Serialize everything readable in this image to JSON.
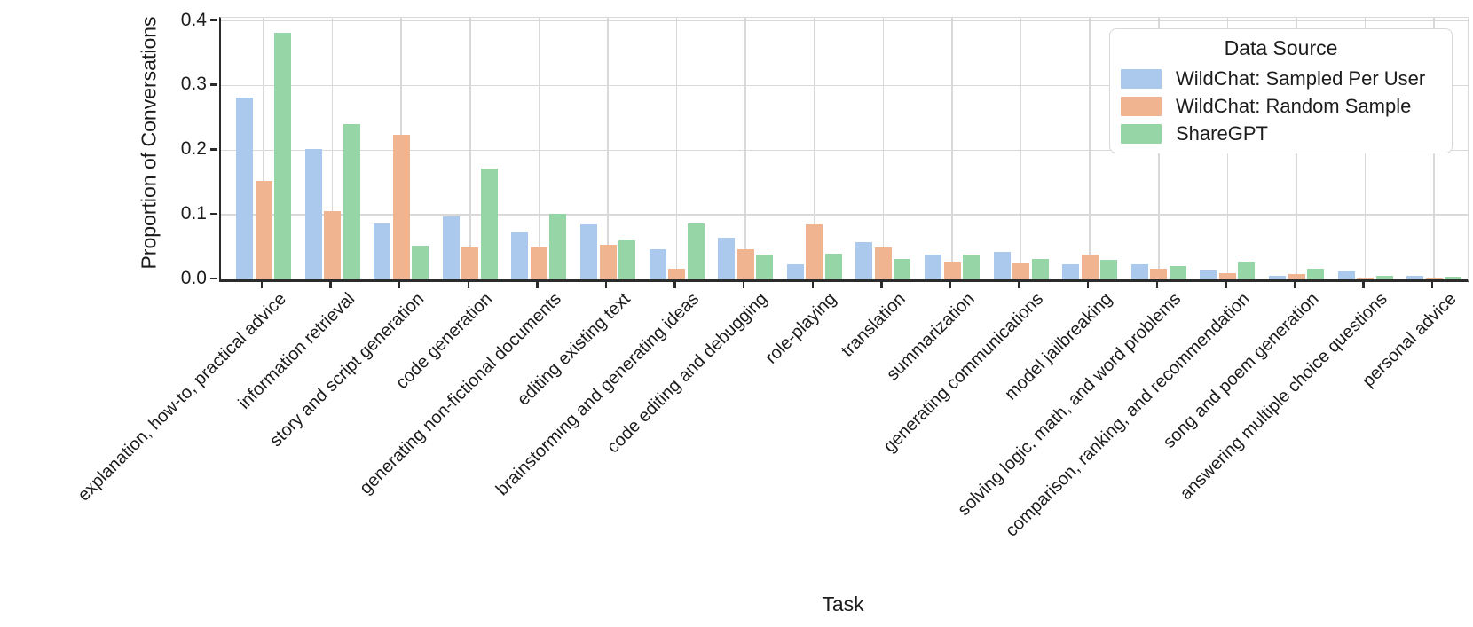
{
  "chart_data": {
    "type": "bar",
    "title": "",
    "xlabel": "Task",
    "ylabel": "Proportion of Conversations",
    "ylim": [
      0,
      0.405
    ],
    "yticks": [
      0.0,
      0.1,
      0.2,
      0.3,
      0.4
    ],
    "ytick_labels": [
      "0.0",
      "0.1",
      "0.2",
      "0.3",
      "0.4"
    ],
    "grid": true,
    "legend_title": "Data Source",
    "legend_position": "upper right",
    "categories": [
      "explanation, how-to, practical advice",
      "information retrieval",
      "story and script generation",
      "code generation",
      "generating non-fictional documents",
      "editing existing text",
      "brainstorming and generating ideas",
      "code editing and debugging",
      "role-playing",
      "translation",
      "summarization",
      "generating communications",
      "model jailbreaking",
      "solving logic, math, and word problems",
      "comparison, ranking, and recommendation",
      "song and poem generation",
      "answering multiple choice questions",
      "personal advice"
    ],
    "series": [
      {
        "name": "WildChat: Sampled Per User",
        "color": "#aac9ec",
        "values": [
          0.281,
          0.202,
          0.086,
          0.097,
          0.073,
          0.085,
          0.046,
          0.065,
          0.023,
          0.058,
          0.039,
          0.043,
          0.023,
          0.023,
          0.014,
          0.006,
          0.013,
          0.006
        ]
      },
      {
        "name": "WildChat: Random Sample",
        "color": "#f1b490",
        "values": [
          0.153,
          0.106,
          0.224,
          0.049,
          0.051,
          0.054,
          0.017,
          0.046,
          0.085,
          0.05,
          0.027,
          0.026,
          0.039,
          0.016,
          0.009,
          0.008,
          0.003,
          0.001
        ]
      },
      {
        "name": "ShareGPT",
        "color": "#96d6a6",
        "values": [
          0.382,
          0.24,
          0.052,
          0.171,
          0.102,
          0.061,
          0.087,
          0.039,
          0.04,
          0.031,
          0.038,
          0.032,
          0.03,
          0.021,
          0.028,
          0.017,
          0.005,
          0.004
        ]
      }
    ]
  }
}
